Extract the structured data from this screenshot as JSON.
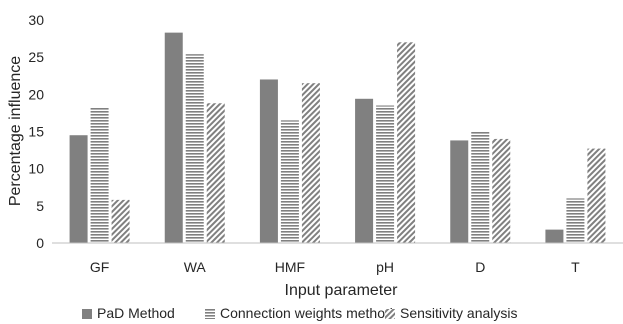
{
  "chart_data": {
    "type": "bar",
    "title": "",
    "xlabel": "Input parameter",
    "ylabel": "Percentage influence",
    "categories": [
      "GF",
      "WA",
      "HMF",
      "pH",
      "D",
      "T"
    ],
    "ylim": [
      0,
      30
    ],
    "yticks": [
      0,
      5,
      10,
      15,
      20,
      25,
      30
    ],
    "grid": false,
    "legend_position": "bottom",
    "series": [
      {
        "name": "PaD Method",
        "values": [
          14.5,
          28.3,
          22.0,
          19.4,
          13.8,
          1.8
        ],
        "color": "#808080",
        "pattern": "solid"
      },
      {
        "name": "Connection weights method",
        "values": [
          18.2,
          25.4,
          16.5,
          18.5,
          15.0,
          6.0
        ],
        "color": "#808080",
        "pattern": "horizontal-lines"
      },
      {
        "name": "Sensitivity analysis",
        "values": [
          5.8,
          18.8,
          21.5,
          27.0,
          14.0,
          12.7
        ],
        "color": "#808080",
        "pattern": "diagonal-lines"
      }
    ]
  }
}
